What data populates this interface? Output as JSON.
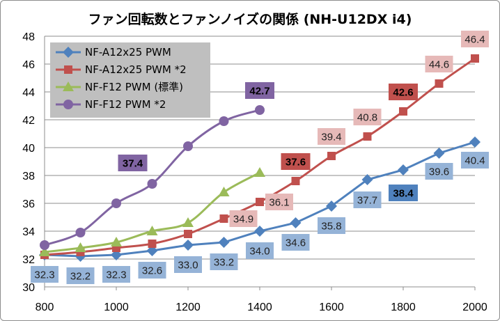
{
  "chart_data": {
    "type": "line",
    "title": "ファン回転数とファンノイズの関係 (NH-U12DX i4)",
    "xlabel": "",
    "ylabel": "",
    "xlim": [
      800,
      2000
    ],
    "ylim": [
      30,
      48
    ],
    "xticks": [
      800,
      1000,
      1200,
      1400,
      1600,
      1800,
      2000
    ],
    "yticks": [
      30,
      32,
      34,
      36,
      38,
      40,
      42,
      44,
      46,
      48
    ],
    "grid": true,
    "legend_position": "top-left",
    "series": [
      {
        "name": "NF-A12x25 PWM",
        "color": "#4f81bd",
        "label_color": "#95b3d7",
        "marker": "diamond",
        "x": [
          800,
          900,
          1000,
          1100,
          1200,
          1300,
          1400,
          1500,
          1600,
          1700,
          1800,
          1900,
          2000
        ],
        "values": [
          32.3,
          32.2,
          32.3,
          32.6,
          33.0,
          33.2,
          34.0,
          34.6,
          35.8,
          37.7,
          38.4,
          39.6,
          40.4
        ],
        "labels": [
          "32.3",
          "32.2",
          "32.3",
          "32.6",
          "33.0",
          "33.2",
          "34.0",
          "34.6",
          "35.8",
          "37.7",
          "38.4",
          "39.6",
          "40.4"
        ],
        "bold_label_index": 10
      },
      {
        "name": "NF-A12x25 PWM *2",
        "color": "#c0504d",
        "label_color": "#e6b9b8",
        "marker": "square",
        "x": [
          800,
          900,
          1000,
          1100,
          1200,
          1300,
          1400,
          1500,
          1600,
          1700,
          1800,
          1900,
          2000
        ],
        "values": [
          32.3,
          32.5,
          32.8,
          33.1,
          33.8,
          34.9,
          36.1,
          37.6,
          39.4,
          40.8,
          42.6,
          44.6,
          46.4
        ],
        "label_from_index": 5,
        "labels": [
          "34.9",
          "36.1",
          "37.6",
          "39.4",
          "40.8",
          "42.6",
          "44.6",
          "46.4"
        ],
        "bold_label_indices": [
          7,
          10
        ]
      },
      {
        "name": "NF-F12 PWM (標準)",
        "color": "#9bbb59",
        "marker": "triangle",
        "x": [
          800,
          900,
          1000,
          1100,
          1200,
          1300,
          1400
        ],
        "values": [
          32.5,
          32.8,
          33.2,
          34.0,
          34.6,
          36.8,
          38.2
        ]
      },
      {
        "name": "NF-F12 PWM *2",
        "color": "#8064a2",
        "label_color": "#8064a2",
        "marker": "circle",
        "x": [
          800,
          900,
          1000,
          1100,
          1200,
          1300,
          1400
        ],
        "values": [
          33.0,
          33.9,
          36.0,
          37.4,
          40.1,
          41.9,
          42.7
        ],
        "labels": [
          "37.4",
          "42.7"
        ],
        "label_indices": [
          3,
          6
        ]
      }
    ]
  }
}
